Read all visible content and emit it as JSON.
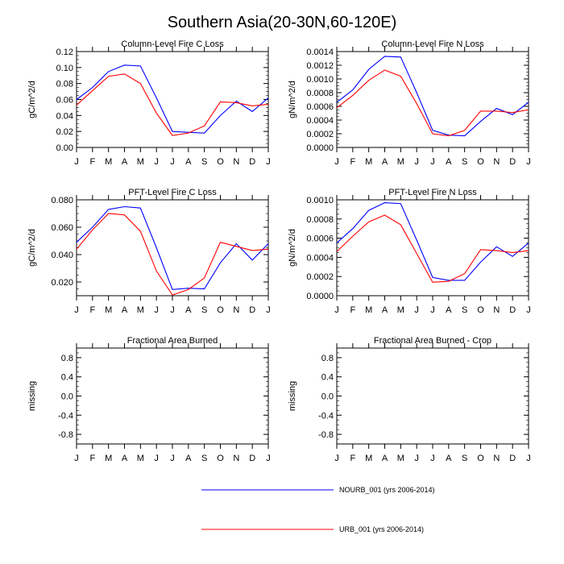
{
  "figure_title": "Southern Asia(20-30N,60-120E)",
  "colors": {
    "nourb": "#0000ff",
    "urb": "#ff0000",
    "axis": "#000000"
  },
  "legend": {
    "nourb_label": "NOURB_001 (yrs 2006-2014)",
    "urb_label": "URB_001 (yrs 2006-2014)"
  },
  "chart_data": [
    {
      "type": "line",
      "title": "Column-Level Fire C Loss",
      "xlabel": "",
      "ylabel": "gC/m^2/d",
      "categories": [
        "J",
        "F",
        "M",
        "A",
        "M",
        "J",
        "J",
        "A",
        "S",
        "O",
        "N",
        "D",
        "J"
      ],
      "ylim": [
        0,
        0.12
      ],
      "yticks": [
        0,
        0.02,
        0.04,
        0.06,
        0.08,
        0.1,
        0.12
      ],
      "ytick_labels": [
        "0.00",
        "0.02",
        "0.04",
        "0.06",
        "0.08",
        "0.10",
        "0.12"
      ],
      "series": [
        {
          "name": "NOURB_001 (yrs 2006-2014)",
          "values": [
            0.06,
            0.075,
            0.095,
            0.103,
            0.102,
            0.062,
            0.02,
            0.019,
            0.018,
            0.04,
            0.058,
            0.045,
            0.062
          ]
        },
        {
          "name": "URB_001 (yrs 2006-2014)",
          "values": [
            0.053,
            0.071,
            0.089,
            0.092,
            0.08,
            0.043,
            0.015,
            0.018,
            0.027,
            0.057,
            0.056,
            0.052,
            0.054
          ]
        }
      ]
    },
    {
      "type": "line",
      "title": "Column-Level Fire N Loss",
      "xlabel": "",
      "ylabel": "gN/m^2/d",
      "categories": [
        "J",
        "F",
        "M",
        "A",
        "M",
        "J",
        "J",
        "A",
        "S",
        "O",
        "N",
        "D",
        "J"
      ],
      "ylim": [
        0,
        0.0014
      ],
      "yticks": [
        0,
        0.0002,
        0.0004,
        0.0006,
        0.0008,
        0.001,
        0.0012,
        0.0014
      ],
      "ytick_labels": [
        "0.0000",
        "0.0002",
        "0.0004",
        "0.0006",
        "0.0008",
        "0.0010",
        "0.0012",
        "0.0014"
      ],
      "series": [
        {
          "name": "NOURB_001 (yrs 2006-2014)",
          "values": [
            0.00066,
            0.00084,
            0.00114,
            0.00133,
            0.00132,
            0.0008,
            0.00025,
            0.00018,
            0.00017,
            0.00038,
            0.00057,
            0.00048,
            0.00066
          ]
        },
        {
          "name": "URB_001 (yrs 2006-2014)",
          "values": [
            0.00058,
            0.00076,
            0.00098,
            0.00113,
            0.00104,
            0.00064,
            0.0002,
            0.00017,
            0.00025,
            0.00053,
            0.00053,
            0.00051,
            0.00055
          ]
        }
      ]
    },
    {
      "type": "line",
      "title": "PFT-Level Fire C Loss",
      "xlabel": "",
      "ylabel": "gC/m^2/d",
      "categories": [
        "J",
        "F",
        "M",
        "A",
        "M",
        "J",
        "J",
        "A",
        "S",
        "O",
        "N",
        "D",
        "J"
      ],
      "ylim": [
        0.01,
        0.08
      ],
      "yticks": [
        0.02,
        0.04,
        0.06,
        0.08
      ],
      "ytick_labels": [
        "0.020",
        "0.040",
        "0.060",
        "0.080"
      ],
      "series": [
        {
          "name": "NOURB_001 (yrs 2006-2014)",
          "values": [
            0.049,
            0.06,
            0.073,
            0.075,
            0.074,
            0.045,
            0.0145,
            0.0155,
            0.015,
            0.034,
            0.048,
            0.036,
            0.048
          ]
        },
        {
          "name": "URB_001 (yrs 2006-2014)",
          "values": [
            0.044,
            0.058,
            0.07,
            0.069,
            0.057,
            0.028,
            0.0105,
            0.0145,
            0.023,
            0.049,
            0.046,
            0.043,
            0.044
          ]
        }
      ]
    },
    {
      "type": "line",
      "title": "PFT-Level Fire N Loss",
      "xlabel": "",
      "ylabel": "gN/m^2/d",
      "categories": [
        "J",
        "F",
        "M",
        "A",
        "M",
        "J",
        "J",
        "A",
        "S",
        "O",
        "N",
        "D",
        "J"
      ],
      "ylim": [
        0,
        0.001
      ],
      "yticks": [
        0,
        0.0002,
        0.0004,
        0.0006,
        0.0008,
        0.001
      ],
      "ytick_labels": [
        "0.0000",
        "0.0002",
        "0.0004",
        "0.0006",
        "0.0008",
        "0.0010"
      ],
      "series": [
        {
          "name": "NOURB_001 (yrs 2006-2014)",
          "values": [
            0.00055,
            0.0007,
            0.00089,
            0.00097,
            0.00096,
            0.00058,
            0.00019,
            0.00016,
            0.00016,
            0.00035,
            0.00051,
            0.00041,
            0.00055
          ]
        },
        {
          "name": "URB_001 (yrs 2006-2014)",
          "values": [
            0.00046,
            0.00062,
            0.00077,
            0.00084,
            0.00074,
            0.00044,
            0.00014,
            0.00015,
            0.00023,
            0.00048,
            0.00047,
            0.00045,
            0.00047
          ]
        }
      ]
    },
    {
      "type": "line",
      "title": "Fractional Area Burned",
      "xlabel": "",
      "ylabel": "missing",
      "categories": [
        "J",
        "F",
        "M",
        "A",
        "M",
        "J",
        "J",
        "A",
        "S",
        "O",
        "N",
        "D",
        "J"
      ],
      "ylim": [
        -1,
        1
      ],
      "yticks": [
        -0.8,
        -0.4,
        0,
        0.4,
        0.8
      ],
      "ytick_labels": [
        "-0.8",
        "-0.4",
        "0.0",
        "0.4",
        "0.8"
      ],
      "series": []
    },
    {
      "type": "line",
      "title": "Fractional Area Burned - Crop",
      "xlabel": "",
      "ylabel": "missing",
      "categories": [
        "J",
        "F",
        "M",
        "A",
        "M",
        "J",
        "J",
        "A",
        "S",
        "O",
        "N",
        "D",
        "J"
      ],
      "ylim": [
        -1,
        1
      ],
      "yticks": [
        -0.8,
        -0.4,
        0,
        0.4,
        0.8
      ],
      "ytick_labels": [
        "-0.8",
        "-0.4",
        "0.0",
        "0.4",
        "0.8"
      ],
      "series": []
    }
  ]
}
